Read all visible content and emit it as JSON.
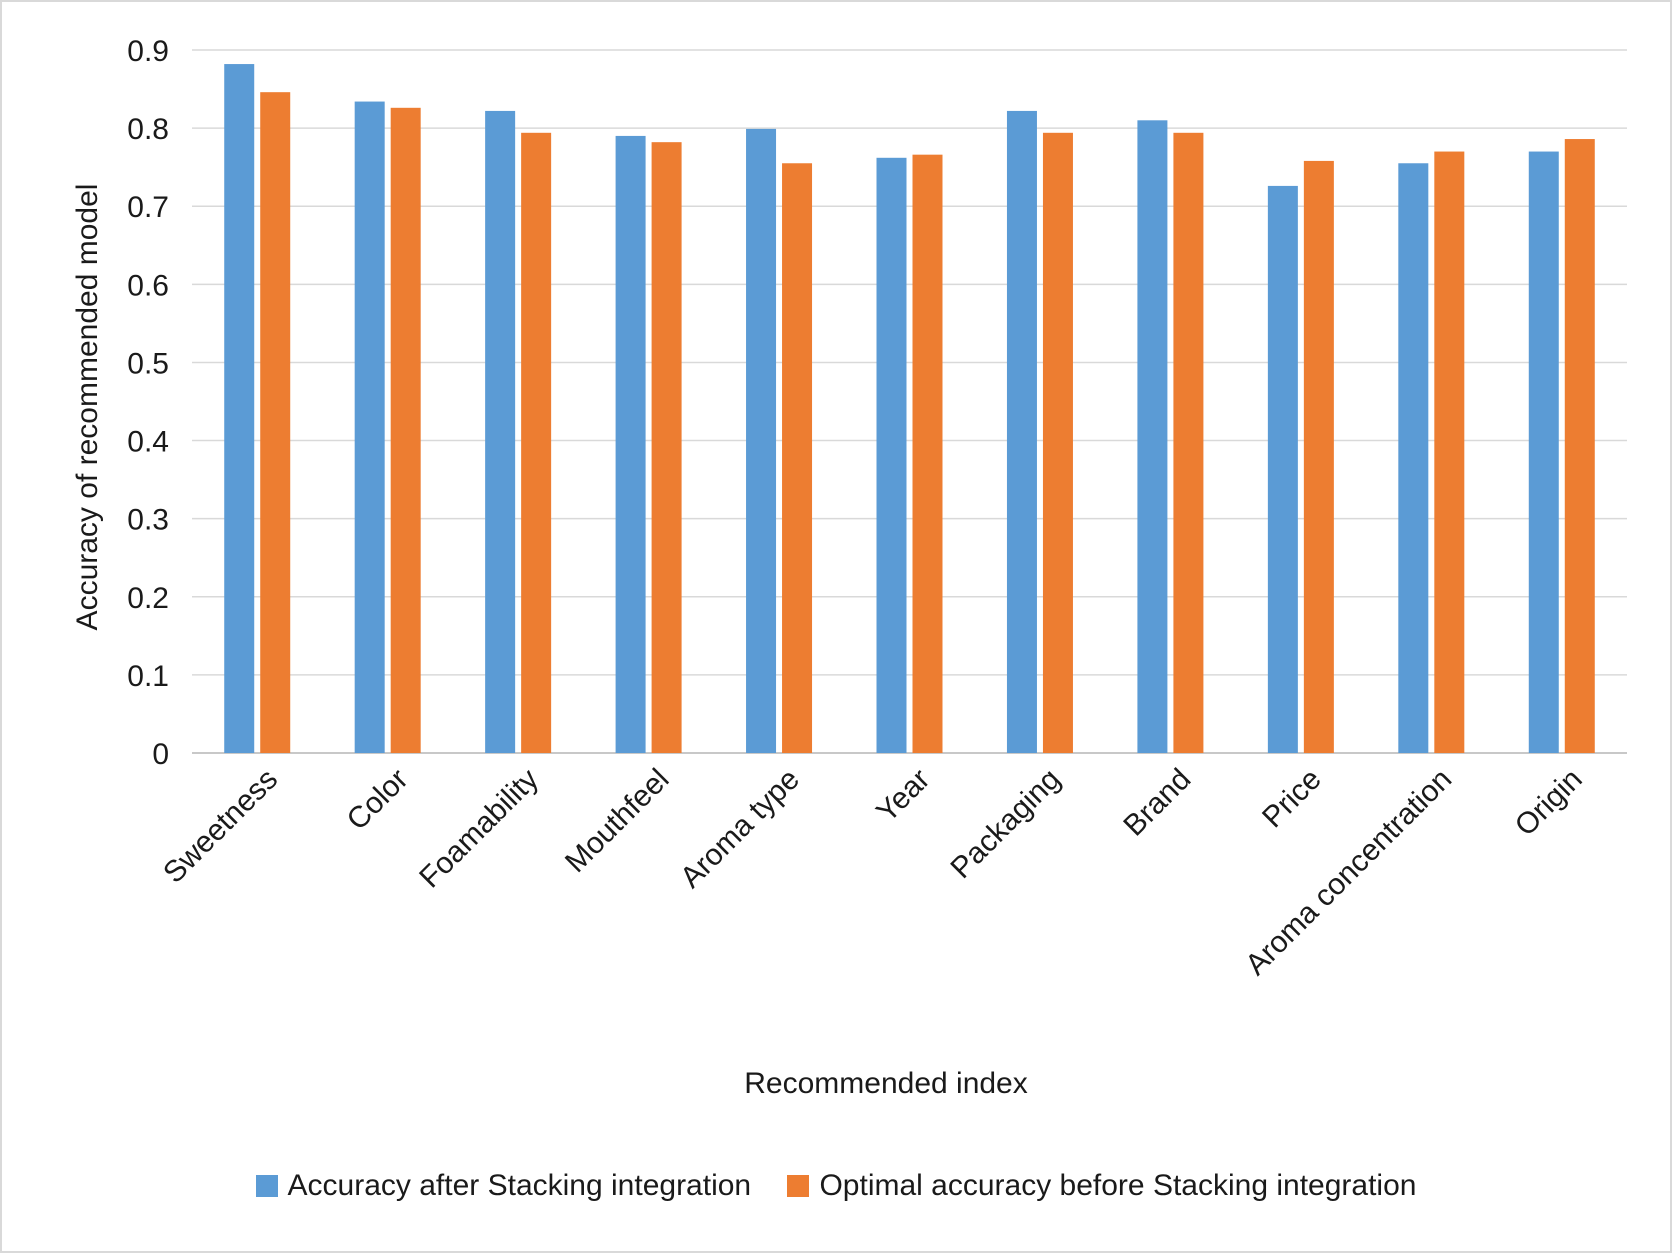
{
  "chart_data": {
    "type": "bar",
    "xlabel": "Recommended index",
    "ylabel": "Accuracy of recommended model",
    "ylim": [
      0,
      0.9
    ],
    "yticks": [
      "0",
      "0.1",
      "0.2",
      "0.3",
      "0.4",
      "0.5",
      "0.6",
      "0.7",
      "0.8",
      "0.9"
    ],
    "grid": true,
    "legend_position": "bottom",
    "categories": [
      "Sweetness",
      "Color",
      "Foamability",
      "Mouthfeel",
      "Aroma type",
      "Year",
      "Packaging",
      "Brand",
      "Price",
      "Aroma concentration",
      "Origin"
    ],
    "series": [
      {
        "name": "Accuracy after Stacking integration",
        "color": "#5b9bd5",
        "values": [
          0.882,
          0.834,
          0.822,
          0.79,
          0.799,
          0.762,
          0.822,
          0.81,
          0.726,
          0.755,
          0.77
        ]
      },
      {
        "name": "Optimal accuracy before Stacking integration",
        "color": "#ed7d31",
        "values": [
          0.846,
          0.826,
          0.794,
          0.782,
          0.755,
          0.766,
          0.794,
          0.794,
          0.758,
          0.77,
          0.786
        ]
      }
    ]
  }
}
